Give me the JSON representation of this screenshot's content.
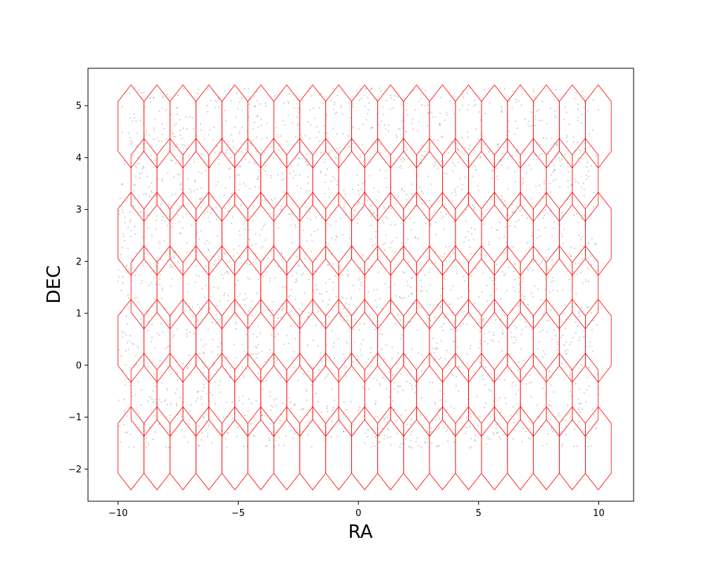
{
  "chart_data": {
    "type": "scatter",
    "title": "",
    "xlabel": "RA",
    "ylabel": "DEC",
    "xlim": [
      -11.25,
      11.45
    ],
    "ylim": [
      -2.62,
      5.72
    ],
    "xticks": [
      -10,
      -5,
      0,
      5,
      10
    ],
    "xtick_labels": [
      "−10",
      "−5",
      "0",
      "5",
      "10"
    ],
    "yticks": [
      -2,
      -1,
      0,
      1,
      2,
      3,
      4,
      5
    ],
    "ytick_labels": [
      "−2",
      "−1",
      "0",
      "1",
      "2",
      "3",
      "4",
      "5"
    ],
    "grid": false,
    "legend": "none",
    "colors": {
      "points": "#000000",
      "hexagons": "#ff0000"
    },
    "point_region": {
      "ra_range": [
        -10,
        10
      ],
      "dec_range": [
        -1.6,
        5.35
      ]
    },
    "hexagon_tiles": {
      "shape": "elongated hexagon",
      "width_ra": 1.08,
      "height_dec": 1.6,
      "rows": [
        {
          "dec_center": 4.6,
          "ra_start": -9.46,
          "ra_step": 1.08,
          "count": 19
        },
        {
          "dec_center": 3.57,
          "ra_start": -8.92,
          "ra_step": 1.08,
          "count": 18
        },
        {
          "dec_center": 2.53,
          "ra_start": -9.46,
          "ra_step": 1.08,
          "count": 19
        },
        {
          "dec_center": 1.5,
          "ra_start": -8.92,
          "ra_step": 1.08,
          "count": 18
        },
        {
          "dec_center": 0.47,
          "ra_start": -9.46,
          "ra_step": 1.08,
          "count": 19
        },
        {
          "dec_center": -0.57,
          "ra_start": -8.92,
          "ra_step": 1.08,
          "count": 18
        },
        {
          "dec_center": -1.6,
          "ra_start": -9.46,
          "ra_step": 1.08,
          "count": 19
        }
      ]
    }
  }
}
